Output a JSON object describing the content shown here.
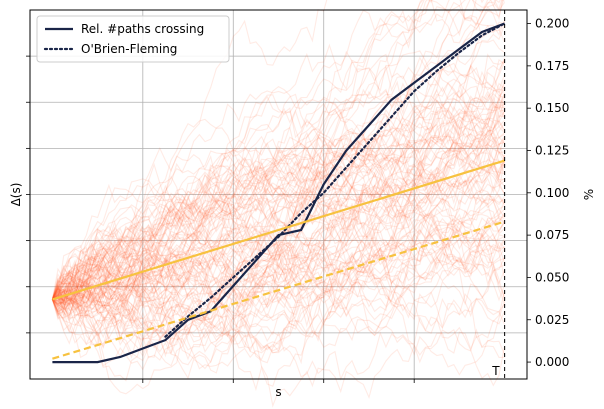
{
  "chart_data": {
    "type": "line",
    "xlabel": "s",
    "ylabel_left": "Δ(s)",
    "ylabel_right": "%",
    "x_range": [
      0,
      1
    ],
    "right_axis": {
      "ylim": [
        -0.01,
        0.208
      ],
      "ticks": [
        0.0,
        0.025,
        0.05,
        0.075,
        0.1,
        0.125,
        0.15,
        0.175,
        0.2
      ],
      "tick_labels": [
        "0.000",
        "0.025",
        "0.050",
        "0.075",
        "0.100",
        "0.125",
        "0.150",
        "0.175",
        "0.200"
      ]
    },
    "left_axis_gridlines": 7,
    "vertical_marker": {
      "x": 1.0,
      "label": "T",
      "style": "dashed",
      "color": "#000000"
    },
    "legend": [
      {
        "label": "Rel. #paths crossing",
        "style": "solid",
        "color": "#1a2548"
      },
      {
        "label": "O'Brien-Fleming",
        "style": "dotted",
        "color": "#1a2548"
      }
    ],
    "paths_band": {
      "description_series": "simulated Brownian paths",
      "color": "#ff5a2a",
      "count": 120,
      "start_right_units": 0.037,
      "end_center_right_units": 0.118,
      "end_spread_right_units": 0.06
    },
    "series": [
      {
        "name": "Rel. #paths crossing",
        "color": "#1a2548",
        "style": "solid",
        "x": [
          0.0,
          0.1,
          0.15,
          0.2,
          0.25,
          0.3,
          0.35,
          0.4,
          0.45,
          0.5,
          0.55,
          0.6,
          0.65,
          0.7,
          0.75,
          0.8,
          0.85,
          0.9,
          0.95,
          1.0
        ],
        "y": [
          0.0,
          0.0,
          0.003,
          0.008,
          0.013,
          0.025,
          0.03,
          0.045,
          0.06,
          0.075,
          0.078,
          0.105,
          0.125,
          0.14,
          0.155,
          0.165,
          0.175,
          0.185,
          0.195,
          0.2
        ]
      },
      {
        "name": "O'Brien-Fleming",
        "color": "#1a2548",
        "style": "dotted",
        "x": [
          0.25,
          0.3,
          0.35,
          0.4,
          0.45,
          0.5,
          0.55,
          0.6,
          0.65,
          0.7,
          0.75,
          0.8,
          0.85,
          0.9,
          0.95,
          1.0
        ],
        "y": [
          0.015,
          0.027,
          0.038,
          0.05,
          0.062,
          0.074,
          0.088,
          0.1,
          0.115,
          0.13,
          0.145,
          0.16,
          0.172,
          0.183,
          0.193,
          0.2
        ]
      },
      {
        "name": "mean path",
        "color": "#f7c23f",
        "style": "solid",
        "x": [
          0.0,
          1.0
        ],
        "y": [
          0.037,
          0.119
        ]
      },
      {
        "name": "boundary",
        "color": "#f7c23f",
        "style": "dashed",
        "x": [
          0.0,
          1.0
        ],
        "y": [
          0.002,
          0.083
        ]
      }
    ]
  }
}
